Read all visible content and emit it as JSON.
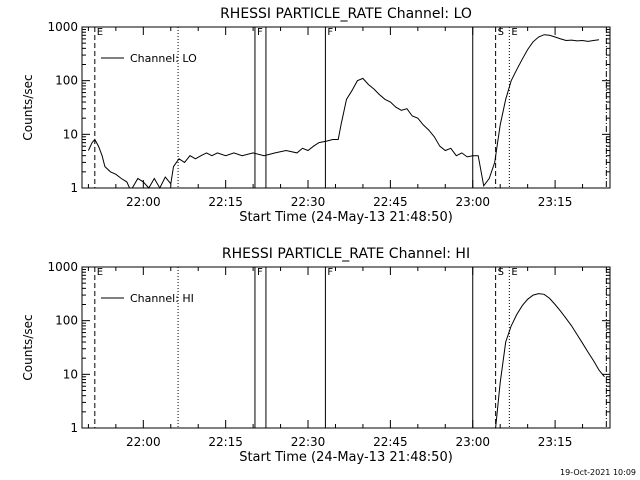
{
  "timestamp": "19-Oct-2021 10:09",
  "chart_data": [
    {
      "type": "line",
      "title": "RHESSI PARTICLE_RATE Channel: LO",
      "xlabel": "Start Time (24-May-13 21:48:50)",
      "ylabel": "Counts/sec",
      "yscale": "log",
      "ylim": [
        1,
        1000
      ],
      "yticks": [
        1,
        10,
        100,
        1000
      ],
      "ytick_labels": [
        "1",
        "10",
        "100",
        "1000"
      ],
      "xlim": [
        "21:48:50",
        "23:25:00"
      ],
      "xticks": [
        "22:00",
        "22:15",
        "22:30",
        "22:45",
        "23:00",
        "23:15"
      ],
      "legend": {
        "position": "top-left",
        "entries": [
          "Channel: LO"
        ]
      },
      "grid": false,
      "series": [
        {
          "name": "Channel: LO",
          "points": [
            [
              "21:50:00",
              5
            ],
            [
              "21:50:40",
              7
            ],
            [
              "21:51:10",
              8
            ],
            [
              "21:51:50",
              6
            ],
            [
              "21:52:30",
              4
            ],
            [
              "21:53:00",
              2.5
            ],
            [
              "21:54:00",
              2
            ],
            [
              "21:55:00",
              1.8
            ],
            [
              "21:56:00",
              1.5
            ],
            [
              "21:57:00",
              1.3
            ],
            [
              "21:57:30",
              1
            ],
            [
              "21:58:00",
              1
            ],
            [
              "21:59:00",
              1.5
            ],
            [
              "22:00:00",
              1.3
            ],
            [
              "22:01:00",
              1
            ],
            [
              "22:02:00",
              1.5
            ],
            [
              "22:03:00",
              1
            ],
            [
              "22:04:00",
              1.6
            ],
            [
              "22:05:00",
              1.2
            ],
            [
              "22:05:30",
              2.5
            ],
            [
              "22:06:30",
              3.5
            ],
            [
              "22:07:30",
              3
            ],
            [
              "22:08:30",
              4
            ],
            [
              "22:09:30",
              3.5
            ],
            [
              "22:10:30",
              4
            ],
            [
              "22:11:30",
              4.5
            ],
            [
              "22:12:30",
              4
            ],
            [
              "22:13:30",
              4.5
            ],
            [
              "22:15:00",
              4
            ],
            [
              "22:16:30",
              4.5
            ],
            [
              "22:18:00",
              4
            ],
            [
              "22:20:00",
              4.5
            ],
            [
              "22:22:00",
              4
            ],
            [
              "22:24:00",
              4.5
            ],
            [
              "22:26:00",
              5
            ],
            [
              "22:28:00",
              4.5
            ],
            [
              "22:29:00",
              5.5
            ],
            [
              "22:30:00",
              5
            ],
            [
              "22:31:00",
              6
            ],
            [
              "22:32:00",
              7
            ],
            [
              "22:33:30",
              7.5
            ],
            [
              "22:34:30",
              8
            ],
            [
              "22:35:30",
              8
            ],
            [
              "22:36:00",
              15
            ],
            [
              "22:37:00",
              45
            ],
            [
              "22:38:00",
              65
            ],
            [
              "22:39:00",
              100
            ],
            [
              "22:40:00",
              110
            ],
            [
              "22:41:00",
              85
            ],
            [
              "22:42:00",
              70
            ],
            [
              "22:43:00",
              55
            ],
            [
              "22:44:00",
              45
            ],
            [
              "22:45:00",
              40
            ],
            [
              "22:46:00",
              32
            ],
            [
              "22:47:00",
              28
            ],
            [
              "22:48:00",
              30
            ],
            [
              "22:49:00",
              22
            ],
            [
              "22:50:00",
              20
            ],
            [
              "22:51:00",
              15
            ],
            [
              "22:52:00",
              12
            ],
            [
              "22:53:00",
              9
            ],
            [
              "22:54:00",
              6
            ],
            [
              "22:55:00",
              5
            ],
            [
              "22:56:00",
              5.5
            ],
            [
              "22:57:00",
              4
            ],
            [
              "22:58:00",
              4.5
            ],
            [
              "22:59:00",
              3.8
            ],
            [
              "23:00:00",
              4
            ],
            [
              "23:01:00",
              4
            ],
            [
              "23:02:00",
              1.1
            ],
            [
              "23:03:00",
              1.5
            ],
            [
              "23:04:00",
              3
            ],
            [
              "23:05:00",
              15
            ],
            [
              "23:06:00",
              45
            ],
            [
              "23:07:00",
              100
            ],
            [
              "23:08:00",
              160
            ],
            [
              "23:09:00",
              250
            ],
            [
              "23:10:00",
              380
            ],
            [
              "23:11:00",
              530
            ],
            [
              "23:12:00",
              650
            ],
            [
              "23:13:00",
              720
            ],
            [
              "23:14:00",
              700
            ],
            [
              "23:15:00",
              650
            ],
            [
              "23:16:00",
              600
            ],
            [
              "23:17:00",
              560
            ],
            [
              "23:18:00",
              570
            ],
            [
              "23:19:00",
              550
            ],
            [
              "23:20:00",
              560
            ],
            [
              "23:21:00",
              540
            ],
            [
              "23:22:00",
              560
            ],
            [
              "23:23:00",
              580
            ]
          ]
        }
      ],
      "markers": [
        {
          "time": "21:51:10",
          "style": "dashed",
          "label": "E"
        },
        {
          "time": "22:06:20",
          "style": "dotted",
          "label": ""
        },
        {
          "time": "22:20:20",
          "style": "solid",
          "label": "F"
        },
        {
          "time": "22:22:20",
          "style": "solid",
          "label": ""
        },
        {
          "time": "22:33:10",
          "style": "solid",
          "label": "F"
        },
        {
          "time": "23:00:00",
          "style": "solid",
          "label": ""
        },
        {
          "time": "23:04:10",
          "style": "dashed",
          "label": "S"
        },
        {
          "time": "23:06:40",
          "style": "dotted",
          "label": "E"
        },
        {
          "time": "23:24:20",
          "style": "dashdot",
          "label": ""
        }
      ]
    },
    {
      "type": "line",
      "title": "RHESSI PARTICLE_RATE Channel: HI",
      "xlabel": "Start Time (24-May-13 21:48:50)",
      "ylabel": "Counts/sec",
      "yscale": "log",
      "ylim": [
        1,
        1000
      ],
      "yticks": [
        1,
        10,
        100,
        1000
      ],
      "ytick_labels": [
        "1",
        "10",
        "100",
        "1000"
      ],
      "xlim": [
        "21:48:50",
        "23:25:00"
      ],
      "xticks": [
        "22:00",
        "22:15",
        "22:30",
        "22:45",
        "23:00",
        "23:15"
      ],
      "legend": {
        "position": "top-left",
        "entries": [
          "Channel: HI"
        ]
      },
      "grid": false,
      "series": [
        {
          "name": "Channel: HI",
          "points": [
            [
              "23:04:10",
              1
            ],
            [
              "23:05:00",
              7
            ],
            [
              "23:06:00",
              40
            ],
            [
              "23:07:00",
              80
            ],
            [
              "23:08:00",
              130
            ],
            [
              "23:09:00",
              190
            ],
            [
              "23:10:00",
              250
            ],
            [
              "23:11:00",
              300
            ],
            [
              "23:12:00",
              320
            ],
            [
              "23:13:00",
              310
            ],
            [
              "23:14:00",
              260
            ],
            [
              "23:15:00",
              200
            ],
            [
              "23:16:00",
              150
            ],
            [
              "23:17:00",
              110
            ],
            [
              "23:18:00",
              80
            ],
            [
              "23:19:00",
              55
            ],
            [
              "23:20:00",
              38
            ],
            [
              "23:21:00",
              26
            ],
            [
              "23:22:00",
              18
            ],
            [
              "23:23:00",
              12
            ],
            [
              "23:24:00",
              9
            ]
          ]
        }
      ],
      "markers": [
        {
          "time": "21:51:10",
          "style": "dashed",
          "label": "E"
        },
        {
          "time": "22:06:20",
          "style": "dotted",
          "label": ""
        },
        {
          "time": "22:20:20",
          "style": "solid",
          "label": "F"
        },
        {
          "time": "22:22:20",
          "style": "solid",
          "label": ""
        },
        {
          "time": "22:33:10",
          "style": "solid",
          "label": "F"
        },
        {
          "time": "23:00:00",
          "style": "solid",
          "label": ""
        },
        {
          "time": "23:04:10",
          "style": "dashed",
          "label": "S"
        },
        {
          "time": "23:06:40",
          "style": "dotted",
          "label": "E"
        },
        {
          "time": "23:24:20",
          "style": "dashdot",
          "label": ""
        }
      ]
    }
  ]
}
